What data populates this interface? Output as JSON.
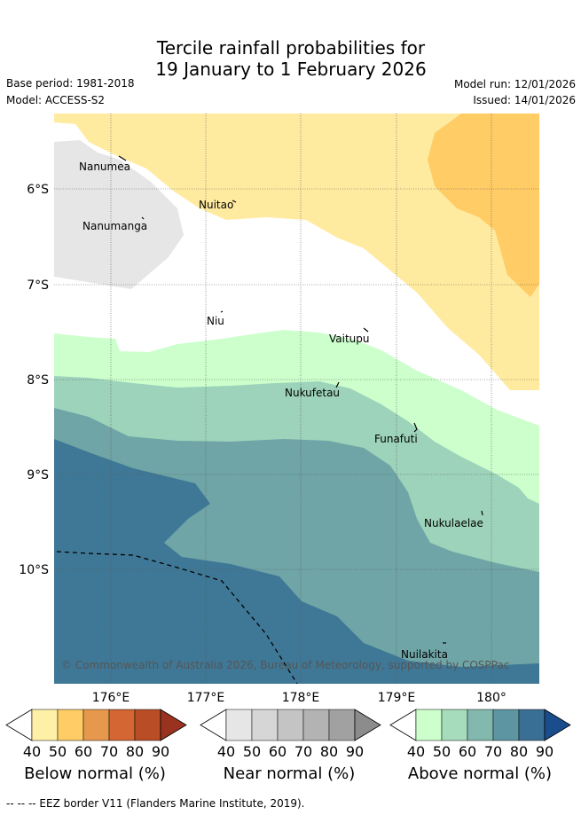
{
  "title": {
    "line1": "Tercile rainfall probabilities for",
    "line2": "19 January to 1 February 2026"
  },
  "meta": {
    "base_period": "Base period: 1981-2018",
    "model": "Model: ACCESS-S2",
    "model_run": "Model run: 12/01/2026",
    "issued": "Issued: 14/01/2026"
  },
  "axes": {
    "lat_labels": [
      "6°S",
      "7°S",
      "8°S",
      "9°S",
      "10°S"
    ],
    "lon_labels": [
      "176°E",
      "177°E",
      "178°E",
      "179°E",
      "180°"
    ]
  },
  "places": [
    {
      "name": "Nanumea"
    },
    {
      "name": "Nuitao"
    },
    {
      "name": "Nanumanga"
    },
    {
      "name": "Niu"
    },
    {
      "name": "Vaitupu"
    },
    {
      "name": "Nukufetau"
    },
    {
      "name": "Funafuti"
    },
    {
      "name": "Nukulaelae"
    },
    {
      "name": "Nuilakita"
    }
  ],
  "copyright": "© Commonwealth of Australia 2026, Bureau of Meteorology, supported by COSPPac",
  "colorbars": [
    {
      "label": "Below normal (%)",
      "ticks": [
        "40",
        "50",
        "60",
        "70",
        "80",
        "90"
      ],
      "colors": [
        "#fff0a8",
        "#ffcc66",
        "#e6994d",
        "#d46633",
        "#b84d26",
        "#993320"
      ]
    },
    {
      "label": "Near normal (%)",
      "ticks": [
        "40",
        "50",
        "60",
        "70",
        "80",
        "90"
      ],
      "colors": [
        "#e6e6e6",
        "#d6d6d6",
        "#c4c4c4",
        "#b3b3b3",
        "#a1a1a1",
        "#8c8c8c"
      ]
    },
    {
      "label": "Above normal (%)",
      "ticks": [
        "40",
        "50",
        "60",
        "70",
        "80",
        "90"
      ],
      "colors": [
        "#ccffcc",
        "#a6dcbc",
        "#82b8ae",
        "#5e95a3",
        "#3a6f95",
        "#1a4d8c"
      ]
    }
  ],
  "footer": "-- -- -- EEZ border V11 (Flanders Marine Institute, 2019).",
  "colors": {
    "below40": "#ffeba0",
    "below50": "#ffcc66",
    "near40": "#e6e6e6",
    "above40": "#ccffcc",
    "above50": "#9dd3ba",
    "above60": "#6fa5a6",
    "above70": "#3f7896"
  }
}
